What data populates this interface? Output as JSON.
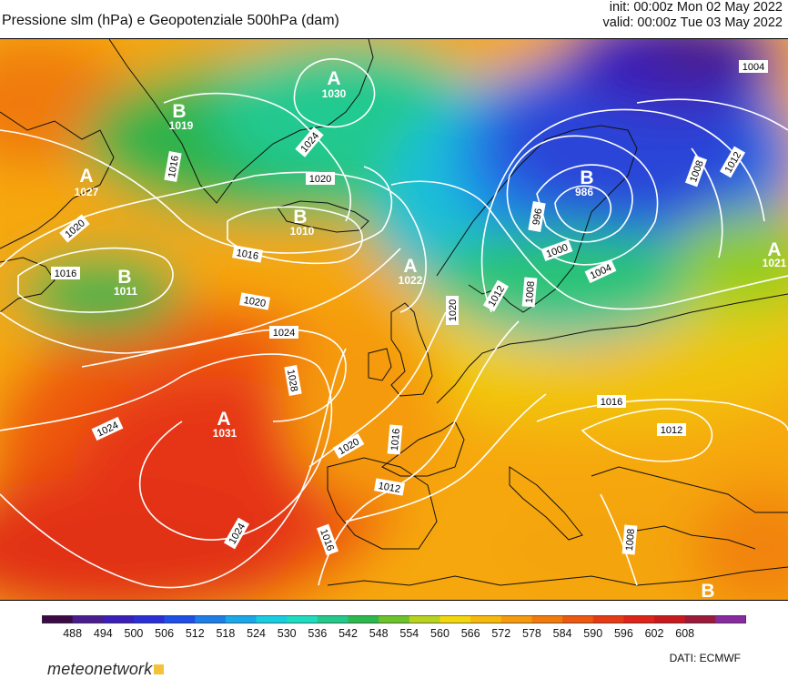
{
  "header": {
    "title": "Pressione slm (hPa) e Geopotenziale 500hPa (dam)",
    "init": "init: 00:00z Mon 02 May 2022",
    "valid": "valid: 00:00z Tue 03 May 2022"
  },
  "colorbar": {
    "tick_labels": [
      "488",
      "494",
      "500",
      "506",
      "512",
      "518",
      "524",
      "530",
      "536",
      "542",
      "548",
      "554",
      "560",
      "566",
      "572",
      "578",
      "584",
      "590",
      "596",
      "602",
      "608"
    ],
    "colors": [
      "#3b0a45",
      "#4a1d8f",
      "#3a1fb8",
      "#2a2fd6",
      "#1e4fe6",
      "#1d7ee8",
      "#1aa8e6",
      "#19cde0",
      "#1ddcc0",
      "#22c98a",
      "#2bb84e",
      "#6cc22a",
      "#b8d21e",
      "#f2d60e",
      "#f7b80c",
      "#f59a0c",
      "#f27a0c",
      "#ec5810",
      "#e63a14",
      "#de2418",
      "#c81a1c",
      "#9c1a3a",
      "#8a2aa0"
    ]
  },
  "pressure_centers": [
    {
      "letter": "A",
      "value": "1030"
    },
    {
      "letter": "B",
      "value": "1019"
    },
    {
      "letter": "A",
      "value": "1027"
    },
    {
      "letter": "B",
      "value": "1010"
    },
    {
      "letter": "B",
      "value": "1011"
    },
    {
      "letter": "A",
      "value": "1022"
    },
    {
      "letter": "B",
      "value": "986"
    },
    {
      "letter": "A",
      "value": "1021"
    },
    {
      "letter": "A",
      "value": "1031"
    },
    {
      "letter": "B",
      "value": ""
    }
  ],
  "isobar_labels": [
    "1004",
    "1012",
    "1008",
    "1024",
    "1020",
    "1016",
    "996",
    "1000",
    "1004",
    "1020",
    "1012",
    "1008",
    "1020",
    "1016",
    "1016",
    "1020",
    "1024",
    "1028",
    "1024",
    "1024",
    "1020",
    "1016",
    "1012",
    "1016",
    "1016",
    "1012",
    "1008"
  ],
  "footer": {
    "brand": "meteonetwork",
    "credits": "DATI:  ECMWF"
  }
}
